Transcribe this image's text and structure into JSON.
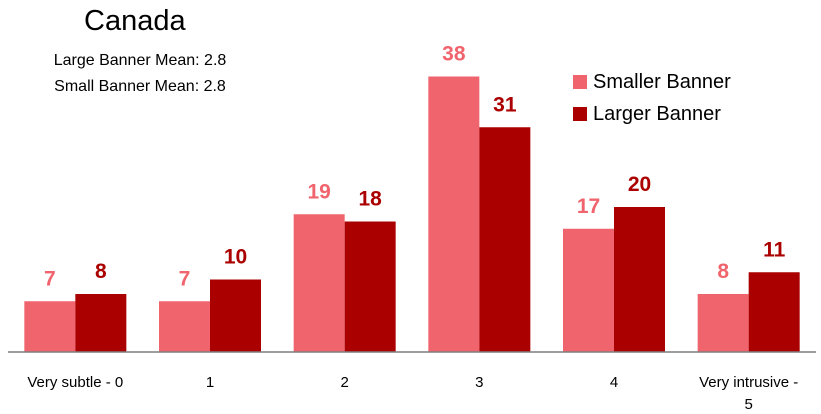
{
  "chart_data": {
    "type": "bar",
    "title": "Canada",
    "annotations": [
      "Large Banner Mean: 2.8",
      "Small Banner Mean: 2.8"
    ],
    "categories": [
      "Very subtle - 0",
      "1",
      "2",
      "3",
      "4",
      "Very intrusive - 5"
    ],
    "series": [
      {
        "name": "Smaller Banner",
        "color": "#f0646e",
        "values": [
          7,
          7,
          19,
          38,
          17,
          8
        ]
      },
      {
        "name": "Larger Banner",
        "color": "#ab0000",
        "values": [
          8,
          10,
          18,
          31,
          20,
          11
        ]
      }
    ],
    "xlabel": "",
    "ylabel": "",
    "ylim": [
      0,
      40
    ],
    "grid": false,
    "legend_position": "top-right",
    "data_labels": true
  }
}
